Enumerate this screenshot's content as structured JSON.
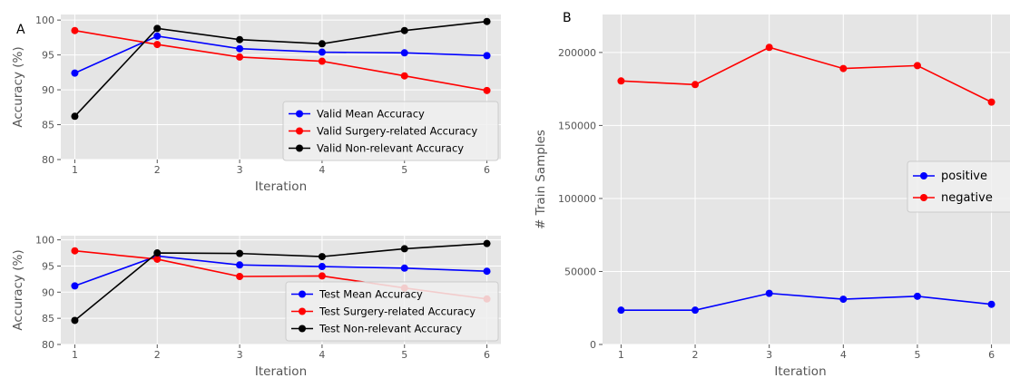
{
  "panel_labels": {
    "a": "A",
    "b": "B"
  },
  "colors": {
    "plot_bg": "#e5e5e5",
    "grid": "#ffffff",
    "blue": "#0000ff",
    "red": "#ff0000",
    "black": "#000000",
    "tick_text": "#555555",
    "axis_label": "#555555"
  },
  "chart_data": [
    {
      "type": "line",
      "panel": "A-top",
      "x": [
        1,
        2,
        3,
        4,
        5,
        6
      ],
      "xlabel": "Iteration",
      "ylabel": "Accuracy (%)",
      "xlim": [
        0.83,
        6.17
      ],
      "ylim": [
        80,
        100.8
      ],
      "xticks": [
        1,
        2,
        3,
        4,
        5,
        6
      ],
      "yticks": [
        80,
        85,
        90,
        95,
        100
      ],
      "grid": true,
      "legend_position": "lower-right",
      "series": [
        {
          "name": "Valid Mean Accuracy",
          "color": "blue",
          "values": [
            92.4,
            97.7,
            95.9,
            95.4,
            95.3,
            94.9
          ]
        },
        {
          "name": "Valid Surgery-related Accuracy",
          "color": "red",
          "values": [
            98.5,
            96.5,
            94.7,
            94.1,
            92.0,
            89.9
          ]
        },
        {
          "name": "Valid Non-relevant Accuracy",
          "color": "black",
          "values": [
            86.2,
            98.8,
            97.2,
            96.6,
            98.5,
            99.8
          ]
        }
      ]
    },
    {
      "type": "line",
      "panel": "A-bottom",
      "x": [
        1,
        2,
        3,
        4,
        5,
        6
      ],
      "xlabel": "Iteration",
      "ylabel": "Accuracy (%)",
      "xlim": [
        0.83,
        6.17
      ],
      "ylim": [
        80,
        100.8
      ],
      "xticks": [
        1,
        2,
        3,
        4,
        5,
        6
      ],
      "yticks": [
        80,
        85,
        90,
        95,
        100
      ],
      "grid": true,
      "legend_position": "lower-right",
      "series": [
        {
          "name": "Test Mean Accuracy",
          "color": "blue",
          "values": [
            91.2,
            96.9,
            95.2,
            94.9,
            94.6,
            94.0
          ]
        },
        {
          "name": "Test Surgery-related Accuracy",
          "color": "red",
          "values": [
            97.9,
            96.3,
            93.0,
            93.1,
            90.8,
            88.7
          ]
        },
        {
          "name": "Test Non-relevant Accuracy",
          "color": "black",
          "values": [
            84.6,
            97.5,
            97.4,
            96.8,
            98.3,
            99.3
          ]
        }
      ]
    },
    {
      "type": "line",
      "panel": "B",
      "x": [
        1,
        2,
        3,
        4,
        5,
        6
      ],
      "xlabel": "Iteration",
      "ylabel": "# Train Samples",
      "xlim": [
        0.75,
        6.25
      ],
      "ylim": [
        0,
        226000
      ],
      "xticks": [
        1,
        2,
        3,
        4,
        5,
        6
      ],
      "yticks": [
        0,
        50000,
        100000,
        150000,
        200000
      ],
      "grid": true,
      "legend_position": "center-right",
      "series": [
        {
          "name": "positive",
          "color": "blue",
          "values": [
            23500,
            23500,
            35000,
            31000,
            33000,
            27500
          ]
        },
        {
          "name": "negative",
          "color": "red",
          "values": [
            180500,
            178000,
            203500,
            189000,
            191000,
            166000
          ]
        }
      ]
    }
  ]
}
